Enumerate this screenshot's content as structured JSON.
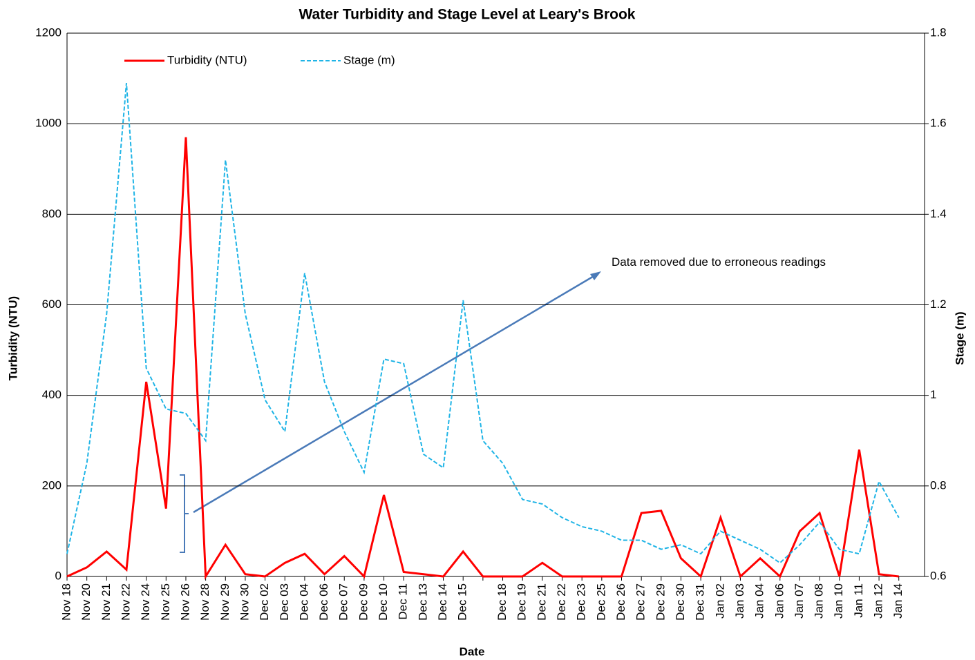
{
  "chart_data": {
    "type": "line",
    "title": "Water Turbidity and Stage Level at Leary's Brook",
    "x_label": "Date",
    "y_label": "Turbidity (NTU)",
    "y2_label": "Stage (m)",
    "annotation": "Data removed due to erroneous readings",
    "categories": [
      "Nov 18",
      "Nov 20",
      "Nov 21",
      "Nov 22",
      "Nov 24",
      "Nov 25",
      "Nov 26",
      "Nov 28",
      "Nov 29",
      "Nov 30",
      "Dec 02",
      "Dec 03",
      "Dec 04",
      "Dec 06",
      "Dec 07",
      "Dec 09",
      "Dec 10",
      "Dec 11",
      "Dec 13",
      "Dec 14",
      "Dec 15",
      null,
      "Dec 18",
      "Dec 19",
      "Dec 21",
      "Dec 22",
      "Dec 23",
      "Dec 25",
      "Dec 26",
      "Dec 27",
      "Dec 29",
      "Dec 30",
      "Dec 31",
      "Jan 02",
      "Jan 03",
      "Jan 04",
      "Jan 06",
      "Jan 07",
      "Jan 08",
      "Jan 10",
      "Jan 11",
      "Jan 12",
      "Jan 14"
    ],
    "series": [
      {
        "name": "Turbidity (NTU)",
        "color": "#ff0000",
        "values": [
          0,
          20,
          55,
          15,
          430,
          150,
          970,
          0,
          70,
          5,
          0,
          30,
          50,
          5,
          45,
          0,
          180,
          10,
          5,
          0,
          55,
          0,
          0,
          0,
          30,
          0,
          0,
          0,
          0,
          140,
          145,
          40,
          0,
          130,
          0,
          40,
          0,
          100,
          140,
          0,
          280,
          5,
          0
        ]
      },
      {
        "name": "Stage (m)",
        "color": "#1fb4e6",
        "axis": "y2",
        "values": [
          0.65,
          0.85,
          1.18,
          1.69,
          1.06,
          0.97,
          0.96,
          0.9,
          1.52,
          1.18,
          0.99,
          0.92,
          1.27,
          1.03,
          0.92,
          0.83,
          1.08,
          1.07,
          0.87,
          0.84,
          1.21,
          0.9,
          0.85,
          0.77,
          0.76,
          0.73,
          0.71,
          0.7,
          0.68,
          0.68,
          0.66,
          0.67,
          0.65,
          0.7,
          0.68,
          0.66,
          0.63,
          0.67,
          0.72,
          0.66,
          0.65,
          0.81,
          0.73
        ]
      }
    ],
    "ylim": [
      0,
      1200
    ],
    "yticks": [
      0,
      200,
      400,
      600,
      800,
      1000,
      1200
    ],
    "y2lim": [
      0.6,
      1.8
    ],
    "y2ticks": [
      0.6,
      0.8,
      1,
      1.2,
      1.4,
      1.6,
      1.8
    ],
    "grid": true,
    "legend": "top-left"
  }
}
